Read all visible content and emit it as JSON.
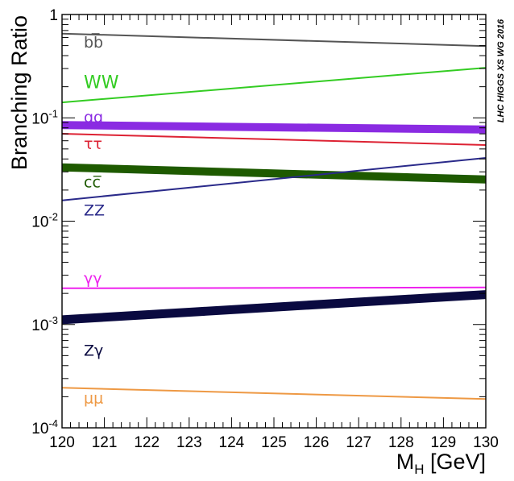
{
  "chart_data": {
    "type": "line",
    "ylabel": "Branching Ratio",
    "xlabel_main": "M",
    "xlabel_sub": "H",
    "xlabel_unit": " [GeV]",
    "watermark": "LHC HIGGS XS WG 2016",
    "xlim": [
      120,
      130
    ],
    "ylim": [
      0.0001,
      1
    ],
    "yscale": "log",
    "grid": false,
    "x_ticks": [
      {
        "value": 120,
        "label": "120"
      },
      {
        "value": 121,
        "label": "121"
      },
      {
        "value": 122,
        "label": "122"
      },
      {
        "value": 123,
        "label": "123"
      },
      {
        "value": 124,
        "label": "124"
      },
      {
        "value": 125,
        "label": "125"
      },
      {
        "value": 126,
        "label": "126"
      },
      {
        "value": 127,
        "label": "127"
      },
      {
        "value": 128,
        "label": "128"
      },
      {
        "value": 129,
        "label": "129"
      },
      {
        "value": 130,
        "label": "130"
      }
    ],
    "y_ticks": [
      {
        "value": 1,
        "base": "1",
        "exp": ""
      },
      {
        "value": 0.1,
        "base": "10",
        "exp": "-1"
      },
      {
        "value": 0.01,
        "base": "10",
        "exp": "-2"
      },
      {
        "value": 0.001,
        "base": "10",
        "exp": "-3"
      },
      {
        "value": 0.0001,
        "base": "10",
        "exp": "-4"
      }
    ],
    "series": [
      {
        "name": "bb̅",
        "color": "#555555",
        "x": [
          120,
          130
        ],
        "y": [
          0.653,
          0.495
        ],
        "thickness": "thin",
        "label_value": 0.53
      },
      {
        "name": "WW",
        "color": "#33cc22",
        "x": [
          120,
          130
        ],
        "y": [
          0.141,
          0.305
        ],
        "thickness": "thin",
        "label_value": 0.215
      },
      {
        "name": "gg",
        "color": "#8a2be2",
        "x": [
          120,
          130
        ],
        "y": [
          0.0852,
          0.077
        ],
        "thickness": "band",
        "label_value": 0.1
      },
      {
        "name": "ττ",
        "color": "#dd2233",
        "x": [
          120,
          130
        ],
        "y": [
          0.0702,
          0.0546
        ],
        "thickness": "thin",
        "label_value": 0.055
      },
      {
        "name": "cc̅",
        "color": "#1e5a00",
        "x": [
          120,
          130
        ],
        "y": [
          0.0332,
          0.0253
        ],
        "thickness": "band",
        "label_value": 0.0235
      },
      {
        "name": "ZZ",
        "color": "#2a2a8a",
        "x": [
          120,
          130
        ],
        "y": [
          0.0159,
          0.0409
        ],
        "thickness": "thin",
        "label_value": 0.0125
      },
      {
        "name": "γγ",
        "color": "#ee22ee",
        "x": [
          120,
          130
        ],
        "y": [
          0.00224,
          0.00228
        ],
        "thickness": "thin",
        "label_value": 0.00275
      },
      {
        "name": "Zγ",
        "color": "#0a0a40",
        "x": [
          120,
          130
        ],
        "y": [
          0.00111,
          0.00195
        ],
        "thickness": "thickband",
        "label_value": 0.00055
      },
      {
        "name": "μμ",
        "color": "#ee9944",
        "x": [
          120,
          130
        ],
        "y": [
          0.000244,
          0.00019
        ],
        "thickness": "thin",
        "label_value": 0.00019
      }
    ],
    "legend": "inline labels near left edge"
  }
}
